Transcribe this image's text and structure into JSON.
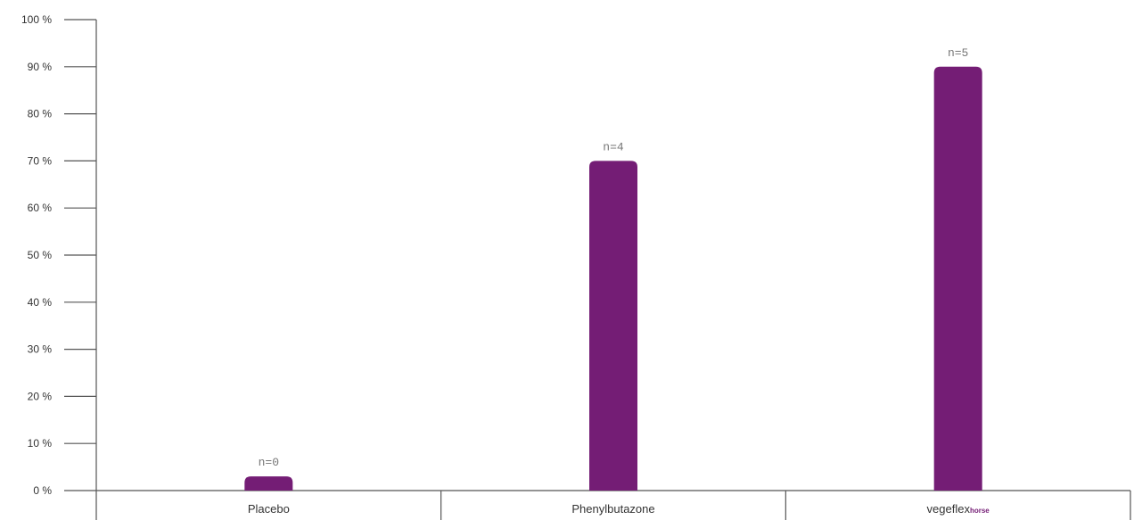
{
  "chart_data": {
    "type": "bar",
    "categories": [
      "Placebo",
      "Phenylbutazone",
      "vegeflex"
    ],
    "category_suffixes": [
      "",
      "",
      "horse"
    ],
    "values": [
      3,
      70,
      90
    ],
    "data_labels": [
      "n=0",
      "n=4",
      "n=5"
    ],
    "title": "",
    "xlabel": "",
    "ylabel": "",
    "ylim": [
      0,
      100
    ],
    "y_ticks": [
      "0 %",
      "10 %",
      "20 %",
      "30 %",
      "40 %",
      "50 %",
      "60 %",
      "70 %",
      "80 %",
      "90 %",
      "100 %"
    ],
    "grid": false,
    "legend": "none",
    "colors": {
      "bar": "#741d75",
      "axis": "#555555",
      "brand_accent": "#741d75"
    }
  }
}
